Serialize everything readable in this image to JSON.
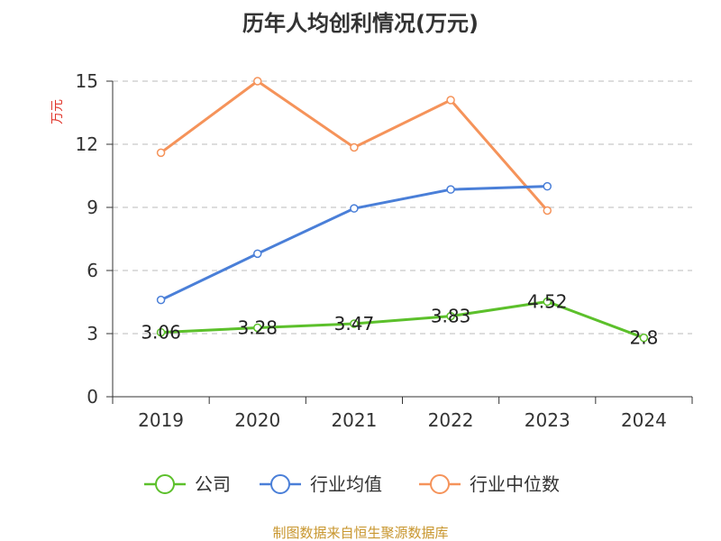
{
  "chart_data": {
    "type": "line",
    "title": "历年人均创利情况(万元)",
    "ylabel": "万元",
    "xlabel": "",
    "categories": [
      "2019",
      "2020",
      "2021",
      "2022",
      "2023",
      "2024"
    ],
    "ylim": [
      0,
      15
    ],
    "yticks": [
      0,
      3,
      6,
      9,
      12,
      15
    ],
    "grid": true,
    "legend_position": "bottom",
    "series": [
      {
        "name": "公司",
        "color": "#5cc02b",
        "values": [
          3.06,
          3.28,
          3.47,
          3.83,
          4.52,
          2.8
        ],
        "labels": [
          "3.06",
          "3.28",
          "3.47",
          "3.83",
          "4.52",
          "2.8"
        ]
      },
      {
        "name": "行业均值",
        "color": "#4a7fd8",
        "values": [
          4.6,
          6.8,
          8.95,
          9.85,
          10.0,
          null
        ]
      },
      {
        "name": "行业中位数",
        "color": "#f5935a",
        "values": [
          11.6,
          15.0,
          11.85,
          14.1,
          8.85,
          null
        ]
      }
    ]
  },
  "colors": {
    "ylabel": "#e0352b",
    "source": "#c8962e",
    "axis": "#333333",
    "grid": "#bbbbbb"
  },
  "source": "制图数据来自恒生聚源数据库"
}
